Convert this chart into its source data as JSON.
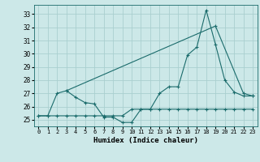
{
  "xlabel": "Humidex (Indice chaleur)",
  "bg_color": "#cce8e8",
  "grid_color": "#aacfcf",
  "line_color": "#1a6b6b",
  "xlim": [
    -0.5,
    23.5
  ],
  "ylim": [
    24.5,
    33.7
  ],
  "yticks": [
    25,
    26,
    27,
    28,
    29,
    30,
    31,
    32,
    33
  ],
  "xticks": [
    0,
    1,
    2,
    3,
    4,
    5,
    6,
    7,
    8,
    9,
    10,
    11,
    12,
    13,
    14,
    15,
    16,
    17,
    18,
    19,
    20,
    21,
    22,
    23
  ],
  "line1_x": [
    0,
    1,
    2,
    3,
    4,
    5,
    6,
    7,
    8,
    9,
    10,
    11,
    12,
    13,
    14,
    15,
    16,
    17,
    18,
    19,
    20,
    21,
    22,
    23
  ],
  "line1_y": [
    25.3,
    25.3,
    25.3,
    25.3,
    25.3,
    25.3,
    25.3,
    25.3,
    25.3,
    25.3,
    25.8,
    25.8,
    25.8,
    25.8,
    25.8,
    25.8,
    25.8,
    25.8,
    25.8,
    25.8,
    25.8,
    25.8,
    25.8,
    25.8
  ],
  "line2_x": [
    0,
    1,
    2,
    3,
    4,
    5,
    6,
    7,
    8,
    9,
    10,
    11,
    12,
    13,
    14,
    15,
    16,
    17,
    18,
    19,
    20,
    21,
    22,
    23
  ],
  "line2_y": [
    25.3,
    25.3,
    27.0,
    27.2,
    26.7,
    26.3,
    26.2,
    25.2,
    25.2,
    24.8,
    24.8,
    25.8,
    25.8,
    27.0,
    27.5,
    27.5,
    29.9,
    30.5,
    33.3,
    30.7,
    28.0,
    27.1,
    26.8,
    26.8
  ],
  "line3_x": [
    3,
    19,
    22,
    23
  ],
  "line3_y": [
    27.2,
    32.1,
    27.0,
    26.8
  ]
}
